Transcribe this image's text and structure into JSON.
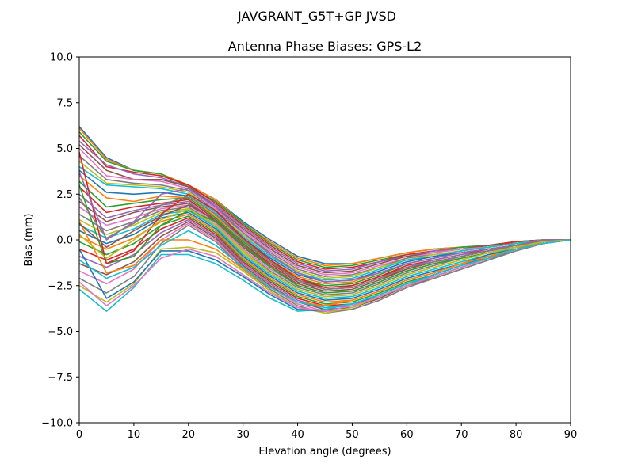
{
  "figure": {
    "suptitle": "JAVGRANT_G5T+GP JVSD"
  },
  "chart_data": {
    "type": "line",
    "title": "Antenna Phase Biases: GPS-L2",
    "xlabel": "Elevation angle (degrees)",
    "ylabel": "Bias (mm)",
    "xlim": [
      0,
      90
    ],
    "ylim": [
      -10,
      10
    ],
    "xticks": [
      0,
      10,
      20,
      30,
      40,
      50,
      60,
      70,
      80,
      90
    ],
    "yticks": [
      -10.0,
      -7.5,
      -5.0,
      -2.5,
      0.0,
      2.5,
      5.0,
      7.5,
      10.0
    ],
    "xtick_labels": [
      "0",
      "10",
      "20",
      "30",
      "40",
      "50",
      "60",
      "70",
      "80",
      "90"
    ],
    "ytick_labels": [
      "−10.0",
      "−7.5",
      "−5.0",
      "−2.5",
      "0.0",
      "2.5",
      "5.0",
      "7.5",
      "10.0"
    ],
    "grid": false,
    "x": [
      0,
      5,
      10,
      15,
      20,
      25,
      30,
      35,
      40,
      45,
      50,
      55,
      60,
      65,
      70,
      75,
      80,
      85,
      90
    ],
    "colors": [
      "#1f77b4",
      "#ff7f0e",
      "#2ca02c",
      "#d62728",
      "#9467bd",
      "#8c564b",
      "#e377c2",
      "#7f7f7f",
      "#bcbd22",
      "#17becf"
    ],
    "series": [
      {
        "values": [
          6.2,
          4.5,
          3.8,
          3.6,
          3.0,
          2.2,
          1.0,
          0.0,
          -0.9,
          -1.3,
          -1.3,
          -1.0,
          -0.7,
          -0.5,
          -0.4,
          -0.3,
          -0.1,
          0.0,
          0.0
        ]
      },
      {
        "values": [
          6.1,
          4.4,
          3.8,
          3.6,
          3.0,
          2.2,
          0.9,
          -0.1,
          -1.0,
          -1.4,
          -1.3,
          -1.0,
          -0.7,
          -0.5,
          -0.4,
          -0.3,
          -0.1,
          0.0,
          0.0
        ]
      },
      {
        "values": [
          5.9,
          4.3,
          3.8,
          3.6,
          2.9,
          2.1,
          0.9,
          -0.2,
          -1.1,
          -1.5,
          -1.4,
          -1.1,
          -0.8,
          -0.6,
          -0.4,
          -0.3,
          -0.1,
          0.0,
          0.0
        ]
      },
      {
        "values": [
          5.7,
          4.0,
          3.7,
          3.5,
          3.0,
          2.0,
          0.8,
          -0.3,
          -1.2,
          -1.6,
          -1.5,
          -1.2,
          -0.8,
          -0.6,
          -0.5,
          -0.3,
          -0.1,
          0.0,
          0.0
        ]
      },
      {
        "values": [
          5.4,
          4.1,
          3.6,
          3.4,
          2.9,
          1.9,
          0.7,
          -0.4,
          -1.3,
          -1.7,
          -1.6,
          -1.2,
          -0.9,
          -0.6,
          -0.5,
          -0.3,
          -0.2,
          0.0,
          0.0
        ]
      },
      {
        "values": [
          5.2,
          3.8,
          3.3,
          3.3,
          2.9,
          1.8,
          0.6,
          -0.5,
          -1.4,
          -1.8,
          -1.7,
          -1.3,
          -0.9,
          -0.7,
          -0.5,
          -0.3,
          -0.2,
          0.0,
          0.0
        ]
      },
      {
        "values": [
          5.0,
          3.5,
          3.3,
          3.2,
          2.8,
          1.7,
          0.5,
          -0.6,
          -1.5,
          -1.9,
          -1.8,
          -1.4,
          -1.0,
          -0.7,
          -0.5,
          -0.4,
          -0.2,
          0.0,
          0.0
        ]
      },
      {
        "values": [
          4.6,
          3.3,
          3.1,
          3.0,
          2.7,
          1.6,
          0.4,
          -0.7,
          -1.6,
          -2.0,
          -1.9,
          -1.5,
          -1.0,
          -0.8,
          -0.6,
          -0.4,
          -0.2,
          0.0,
          0.0
        ]
      },
      {
        "values": [
          4.3,
          3.1,
          3.0,
          2.9,
          2.6,
          1.5,
          0.3,
          -0.8,
          -1.7,
          -2.1,
          -2.0,
          -1.5,
          -1.1,
          -0.8,
          -0.6,
          -0.4,
          -0.2,
          0.0,
          0.0
        ]
      },
      {
        "values": [
          4.0,
          3.0,
          2.9,
          2.8,
          2.5,
          1.5,
          0.2,
          -0.9,
          -1.8,
          -2.2,
          -2.1,
          -1.6,
          -1.1,
          -0.9,
          -0.6,
          -0.4,
          -0.2,
          0.0,
          0.0
        ]
      },
      {
        "values": [
          3.8,
          2.6,
          2.5,
          2.6,
          2.4,
          1.4,
          0.1,
          -1.0,
          -1.9,
          -2.3,
          -2.2,
          -1.7,
          -1.2,
          -0.9,
          -0.7,
          -0.5,
          -0.3,
          0.0,
          0.0
        ]
      },
      {
        "values": [
          3.5,
          2.3,
          2.1,
          2.4,
          2.3,
          1.3,
          0.0,
          -1.1,
          -2.0,
          -2.4,
          -2.3,
          -1.8,
          -1.3,
          -1.0,
          -0.7,
          -0.5,
          -0.3,
          0.0,
          0.0
        ]
      },
      {
        "values": [
          3.2,
          1.8,
          2.0,
          2.2,
          2.3,
          1.2,
          -0.1,
          -1.2,
          -2.1,
          -2.5,
          -2.4,
          -1.9,
          -1.3,
          -1.0,
          -0.7,
          -0.5,
          -0.3,
          0.0,
          0.0
        ]
      },
      {
        "values": [
          2.9,
          1.5,
          1.8,
          2.0,
          2.2,
          1.1,
          -0.2,
          -1.3,
          -2.2,
          -2.6,
          -2.5,
          -2.0,
          -1.4,
          -1.1,
          -0.8,
          -0.5,
          -0.3,
          -0.1,
          0.0
        ]
      },
      {
        "values": [
          2.5,
          1.2,
          1.6,
          1.9,
          2.1,
          1.0,
          -0.3,
          -1.4,
          -2.3,
          -2.7,
          -2.6,
          -2.1,
          -1.5,
          -1.1,
          -0.8,
          -0.6,
          -0.3,
          -0.1,
          0.0
        ]
      },
      {
        "values": [
          2.1,
          1.0,
          1.5,
          1.8,
          2.0,
          1.0,
          -0.4,
          -1.5,
          -2.4,
          -2.8,
          -2.7,
          -2.2,
          -1.6,
          -1.2,
          -0.9,
          -0.6,
          -0.3,
          -0.1,
          0.0
        ]
      },
      {
        "values": [
          1.8,
          0.8,
          1.2,
          1.7,
          1.9,
          0.9,
          -0.5,
          -1.6,
          -2.5,
          -2.9,
          -2.8,
          -2.3,
          -1.7,
          -1.3,
          -0.9,
          -0.6,
          -0.4,
          -0.1,
          0.0
        ]
      },
      {
        "values": [
          1.4,
          0.5,
          1.0,
          1.6,
          1.8,
          0.8,
          -0.6,
          -1.7,
          -2.6,
          -3.0,
          -2.9,
          -2.4,
          -1.8,
          -1.4,
          -1.0,
          -0.7,
          -0.4,
          -0.1,
          0.0
        ]
      },
      {
        "values": [
          1.1,
          0.3,
          0.8,
          1.5,
          1.7,
          0.7,
          -0.7,
          -1.8,
          -2.7,
          -3.1,
          -3.0,
          -2.5,
          -1.9,
          -1.5,
          -1.1,
          -0.7,
          -0.4,
          -0.1,
          0.0
        ]
      },
      {
        "values": [
          0.8,
          0.1,
          0.6,
          1.4,
          1.6,
          0.7,
          -0.8,
          -1.9,
          -2.8,
          -3.2,
          -3.1,
          -2.6,
          -2.0,
          -1.6,
          -1.2,
          -0.8,
          -0.4,
          -0.1,
          0.0
        ]
      },
      {
        "values": [
          0.5,
          -0.2,
          0.3,
          1.2,
          1.5,
          0.6,
          -0.9,
          -2.0,
          -2.9,
          -3.3,
          -3.2,
          -2.7,
          -2.1,
          -1.7,
          -1.3,
          -0.8,
          -0.5,
          -0.1,
          0.0
        ]
      },
      {
        "values": [
          0.2,
          -0.5,
          0.1,
          1.0,
          1.4,
          0.5,
          -1.0,
          -2.1,
          -3.0,
          -3.4,
          -3.3,
          -2.8,
          -2.2,
          -1.8,
          -1.3,
          -0.9,
          -0.5,
          -0.1,
          0.0
        ]
      },
      {
        "values": [
          -0.1,
          -0.8,
          -0.2,
          0.8,
          1.3,
          0.4,
          -1.1,
          -2.2,
          -3.1,
          -3.5,
          -3.4,
          -2.9,
          -2.3,
          -1.9,
          -1.4,
          -0.9,
          -0.5,
          -0.1,
          0.0
        ]
      },
      {
        "values": [
          -0.5,
          -1.1,
          -0.5,
          0.6,
          1.2,
          0.3,
          -1.2,
          -2.3,
          -3.2,
          -3.6,
          -3.5,
          -3.0,
          -2.4,
          -2.0,
          -1.5,
          -1.0,
          -0.5,
          -0.1,
          0.0
        ]
      },
      {
        "values": [
          -0.9,
          -1.5,
          -0.8,
          0.4,
          1.1,
          0.2,
          -1.3,
          -2.4,
          -3.3,
          -3.7,
          -3.6,
          -3.1,
          -2.5,
          -2.0,
          -1.5,
          -1.0,
          -0.5,
          -0.1,
          0.0
        ]
      },
      {
        "values": [
          -1.3,
          -1.9,
          -1.2,
          0.2,
          1.0,
          0.1,
          -1.4,
          -2.5,
          -3.4,
          -3.8,
          -3.7,
          -3.2,
          -2.5,
          -2.1,
          -1.6,
          -1.1,
          -0.5,
          -0.2,
          0.0
        ]
      },
      {
        "values": [
          -1.7,
          -2.4,
          -1.6,
          0.0,
          0.9,
          0.0,
          -1.5,
          -2.6,
          -3.5,
          -3.9,
          -3.8,
          -3.3,
          -2.6,
          -2.1,
          -1.6,
          -1.1,
          -0.6,
          -0.2,
          0.0
        ]
      },
      {
        "values": [
          -2.1,
          -2.9,
          -2.0,
          -0.2,
          0.8,
          -0.1,
          -1.6,
          -2.7,
          -3.6,
          -4.0,
          -3.8,
          -3.3,
          -2.6,
          -2.1,
          -1.6,
          -1.1,
          -0.6,
          -0.2,
          0.0
        ]
      },
      {
        "values": [
          -2.5,
          -3.4,
          -2.4,
          -0.5,
          -0.4,
          -0.7,
          -1.7,
          -2.8,
          -3.7,
          -4.0,
          -3.7,
          -3.1,
          -2.5,
          -2.0,
          -1.5,
          -1.0,
          -0.5,
          -0.2,
          0.0
        ]
      },
      {
        "values": [
          -2.7,
          -3.9,
          -2.6,
          -0.8,
          -0.8,
          -1.3,
          -2.2,
          -3.2,
          -3.9,
          -3.8,
          -3.5,
          -3.0,
          -2.4,
          -2.0,
          -1.5,
          -1.0,
          -0.5,
          -0.2,
          0.0
        ]
      },
      {
        "values": [
          -0.5,
          -3.2,
          -2.3,
          -0.6,
          -0.6,
          -1.1,
          -2.0,
          -3.0,
          -3.8,
          -3.9,
          -3.6,
          -3.0,
          -2.4,
          -1.9,
          -1.4,
          -0.9,
          -0.5,
          -0.1,
          0.0
        ]
      },
      {
        "values": [
          1.0,
          -1.8,
          -1.4,
          0.0,
          0.0,
          -0.5,
          -1.6,
          -2.6,
          -3.4,
          -3.6,
          -3.3,
          -2.8,
          -2.2,
          -1.8,
          -1.3,
          -0.9,
          -0.5,
          -0.1,
          0.0
        ]
      },
      {
        "values": [
          3.0,
          -1.3,
          -0.9,
          0.8,
          1.6,
          1.0,
          -0.3,
          -1.5,
          -2.5,
          -2.9,
          -2.8,
          -2.3,
          -1.7,
          -1.3,
          -1.0,
          -0.7,
          -0.4,
          -0.1,
          0.0
        ]
      },
      {
        "values": [
          4.8,
          -1.3,
          -0.6,
          1.4,
          2.5,
          1.6,
          0.1,
          -1.1,
          -2.1,
          -2.6,
          -2.5,
          -2.0,
          -1.5,
          -1.2,
          -0.9,
          -0.6,
          -0.3,
          -0.1,
          0.0
        ]
      },
      {
        "values": [
          3.7,
          0.0,
          1.0,
          2.5,
          2.8,
          1.8,
          0.4,
          -0.8,
          -1.8,
          -2.3,
          -2.2,
          -1.8,
          -1.3,
          -1.0,
          -0.7,
          -0.5,
          -0.3,
          0.0,
          0.0
        ]
      },
      {
        "values": [
          0.9,
          -0.4,
          0.5,
          1.3,
          1.9,
          1.1,
          -0.2,
          -1.4,
          -2.3,
          -2.7,
          -2.6,
          -2.1,
          -1.6,
          -1.2,
          -0.9,
          -0.6,
          -0.3,
          -0.1,
          0.0
        ]
      },
      {
        "values": [
          -2.3,
          -3.6,
          -2.5,
          -1.0,
          -0.5,
          -0.9,
          -1.9,
          -2.9,
          -3.7,
          -3.9,
          -3.6,
          -3.1,
          -2.5,
          -2.0,
          -1.5,
          -1.0,
          -0.5,
          -0.2,
          0.0
        ]
      },
      {
        "values": [
          2.3,
          0.1,
          0.9,
          1.9,
          2.4,
          1.4,
          0.0,
          -1.2,
          -2.2,
          -2.7,
          -2.6,
          -2.1,
          -1.5,
          -1.2,
          -0.9,
          -0.6,
          -0.3,
          -0.1,
          0.0
        ]
      },
      {
        "values": [
          0.3,
          -1.0,
          0.0,
          1.1,
          1.7,
          0.8,
          -0.6,
          -1.8,
          -2.7,
          -3.1,
          -3.0,
          -2.5,
          -1.9,
          -1.5,
          -1.1,
          -0.7,
          -0.4,
          -0.1,
          0.0
        ]
      },
      {
        "values": [
          -1.1,
          -2.1,
          -1.5,
          -0.3,
          0.5,
          -0.3,
          -1.5,
          -2.6,
          -3.4,
          -3.7,
          -3.5,
          -3.0,
          -2.4,
          -1.9,
          -1.4,
          -1.0,
          -0.5,
          -0.2,
          0.0
        ]
      }
    ]
  }
}
